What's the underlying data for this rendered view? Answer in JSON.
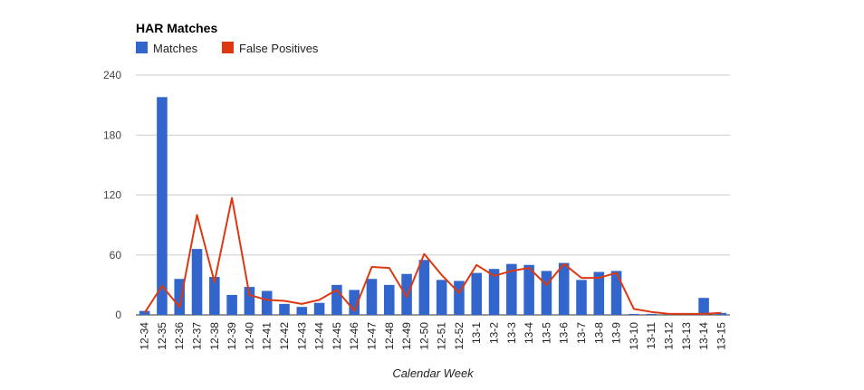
{
  "chart_data": {
    "type": "bar",
    "title": "HAR Matches",
    "xlabel": "Calendar Week",
    "ylabel": "",
    "ylim": [
      0,
      240
    ],
    "yticks": [
      0,
      60,
      120,
      180,
      240
    ],
    "grid": true,
    "legend_position": "top-left",
    "categories": [
      "12-34",
      "12-35",
      "12-36",
      "12-37",
      "12-38",
      "12-39",
      "12-40",
      "12-41",
      "12-42",
      "12-43",
      "12-44",
      "12-45",
      "12-46",
      "12-47",
      "12-48",
      "12-49",
      "12-50",
      "12-51",
      "12-52",
      "13-1",
      "13-2",
      "13-3",
      "13-4",
      "13-5",
      "13-6",
      "13-7",
      "13-8",
      "13-9",
      "13-10",
      "13-11",
      "13-12",
      "13-13",
      "13-14",
      "13-15"
    ],
    "series": [
      {
        "name": "Matches",
        "type": "bar",
        "color": "#3366cc",
        "values": [
          4,
          218,
          36,
          66,
          38,
          20,
          28,
          24,
          11,
          8,
          12,
          30,
          25,
          36,
          30,
          41,
          55,
          35,
          34,
          42,
          46,
          51,
          50,
          44,
          52,
          35,
          43,
          44,
          1,
          1,
          1,
          1,
          17,
          2
        ]
      },
      {
        "name": "False Positives",
        "type": "line",
        "color": "#dc3912",
        "values": [
          2,
          29,
          8,
          100,
          33,
          117,
          20,
          15,
          14,
          11,
          15,
          25,
          4,
          48,
          47,
          18,
          61,
          40,
          22,
          50,
          39,
          44,
          47,
          30,
          51,
          37,
          37,
          42,
          6,
          3,
          1,
          1,
          1,
          2
        ]
      }
    ]
  }
}
